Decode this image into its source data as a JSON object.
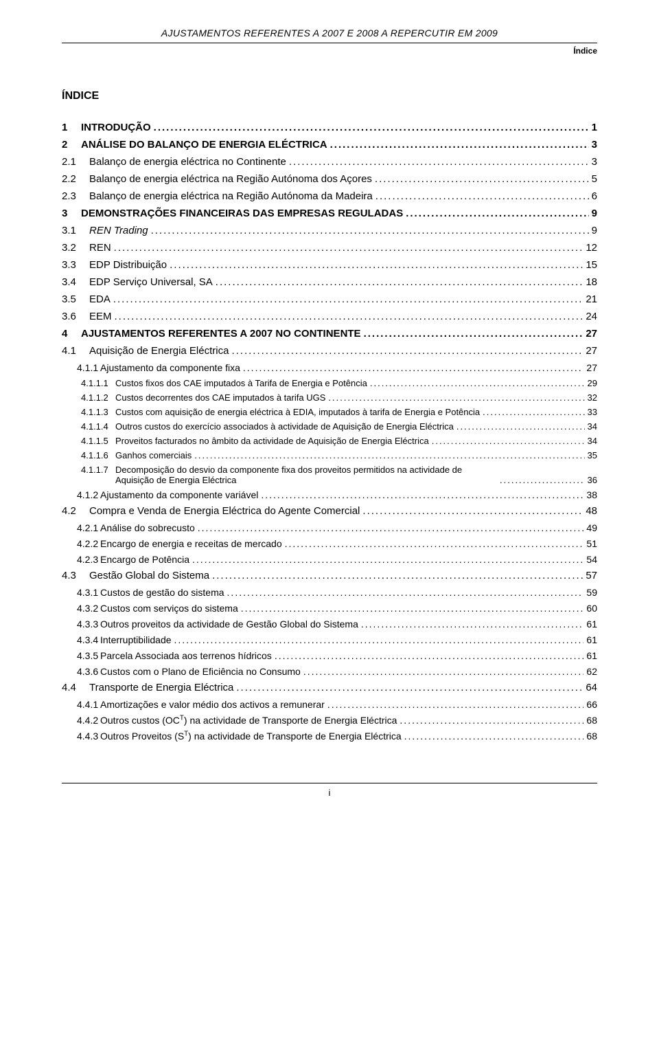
{
  "header": {
    "title": "AJUSTAMENTOS REFERENTES A 2007 E 2008 A REPERCUTIR EM 2009",
    "subtitle": "Índice"
  },
  "index_heading": "ÍNDICE",
  "footer_page": "i",
  "toc": [
    {
      "lvl": 1,
      "num": "1",
      "text": "INTRODUÇÃO",
      "page": "1"
    },
    {
      "lvl": 1,
      "num": "2",
      "text": "ANÁLISE DO BALANÇO DE ENERGIA ELÉCTRICA",
      "page": "3"
    },
    {
      "lvl": 2,
      "num": "2.1",
      "text": "Balanço de energia eléctrica no Continente",
      "page": "3"
    },
    {
      "lvl": 2,
      "num": "2.2",
      "text": "Balanço de energia eléctrica na Região Autónoma dos Açores",
      "page": "5"
    },
    {
      "lvl": 2,
      "num": "2.3",
      "text": "Balanço de energia eléctrica na Região Autónoma da Madeira",
      "page": "6"
    },
    {
      "lvl": 1,
      "num": "3",
      "text": "DEMONSTRAÇÕES FINANCEIRAS DAS EMPRESAS REGULADAS",
      "page": "9"
    },
    {
      "lvl": 2,
      "num": "3.1",
      "text": "REN Trading",
      "page": "9",
      "italic": true
    },
    {
      "lvl": 2,
      "num": "3.2",
      "text": "REN",
      "page": "12"
    },
    {
      "lvl": 2,
      "num": "3.3",
      "text": "EDP Distribuição",
      "page": "15"
    },
    {
      "lvl": 2,
      "num": "3.4",
      "text": "EDP Serviço Universal, SA",
      "page": "18"
    },
    {
      "lvl": 2,
      "num": "3.5",
      "text": "EDA",
      "page": "21"
    },
    {
      "lvl": 2,
      "num": "3.6",
      "text": "EEM",
      "page": "24"
    },
    {
      "lvl": 1,
      "num": "4",
      "text": "AJUSTAMENTOS REFERENTES A 2007 NO CONTINENTE",
      "page": "27"
    },
    {
      "lvl": 2,
      "num": "4.1",
      "text": "Aquisição de Energia Eléctrica",
      "page": "27"
    },
    {
      "lvl": 3,
      "num": "4.1.1",
      "text": "Ajustamento da componente fixa",
      "page": "27"
    },
    {
      "lvl": 4,
      "num": "4.1.1.1",
      "text": "Custos fixos dos CAE imputados à Tarifa de Energia e Potência",
      "page": "29"
    },
    {
      "lvl": 4,
      "num": "4.1.1.2",
      "text": "Custos decorrentes dos CAE imputados à tarifa UGS",
      "page": "32"
    },
    {
      "lvl": 4,
      "num": "4.1.1.3",
      "text": "Custos com aquisição de energia eléctrica à EDIA, imputados à tarifa de Energia e Potência",
      "page": "33",
      "wrap": true
    },
    {
      "lvl": 4,
      "num": "4.1.1.4",
      "text": "Outros custos do exercício associados à actividade de Aquisição de Energia Eléctrica",
      "page": "34"
    },
    {
      "lvl": 4,
      "num": "4.1.1.5",
      "text": "Proveitos facturados no âmbito da actividade de Aquisição de Energia Eléctrica",
      "page": "34"
    },
    {
      "lvl": 4,
      "num": "4.1.1.6",
      "text": "Ganhos comerciais",
      "page": "35"
    },
    {
      "lvl": 4,
      "num": "4.1.1.7",
      "text": "Decomposição do desvio da componente fixa dos proveitos permitidos na actividade de Aquisição de Energia Eléctrica",
      "page": "36",
      "wrap": true
    },
    {
      "lvl": 3,
      "num": "4.1.2",
      "text": "Ajustamento da componente variável",
      "page": "38"
    },
    {
      "lvl": 2,
      "num": "4.2",
      "text": "Compra e Venda de Energia Eléctrica do Agente Comercial",
      "page": "48"
    },
    {
      "lvl": 3,
      "num": "4.2.1",
      "text": "Análise do sobrecusto",
      "page": "49"
    },
    {
      "lvl": 3,
      "num": "4.2.2",
      "text": "Encargo de energia e receitas de mercado",
      "page": "51"
    },
    {
      "lvl": 3,
      "num": "4.2.3",
      "text": "Encargo de Potência",
      "page": "54"
    },
    {
      "lvl": 2,
      "num": "4.3",
      "text": "Gestão Global do Sistema",
      "page": "57"
    },
    {
      "lvl": 3,
      "num": "4.3.1",
      "text": "Custos de gestão do sistema",
      "page": "59"
    },
    {
      "lvl": 3,
      "num": "4.3.2",
      "text": "Custos com serviços do sistema",
      "page": "60"
    },
    {
      "lvl": 3,
      "num": "4.3.3",
      "text": "Outros proveitos da actividade de Gestão Global do Sistema",
      "page": "61"
    },
    {
      "lvl": 3,
      "num": "4.3.4",
      "text": "Interruptibilidade",
      "page": "61"
    },
    {
      "lvl": 3,
      "num": "4.3.5",
      "text": "Parcela Associada aos terrenos hídricos",
      "page": "61"
    },
    {
      "lvl": 3,
      "num": "4.3.6",
      "text": "Custos com o Plano de Eficiência no Consumo",
      "page": "62"
    },
    {
      "lvl": 2,
      "num": "4.4",
      "text": "Transporte de Energia Eléctrica",
      "page": "64"
    },
    {
      "lvl": 3,
      "num": "4.4.1",
      "text": "Amortizações e valor médio dos activos a remunerar",
      "page": "66"
    },
    {
      "lvl": 3,
      "num": "4.4.2",
      "text_html": "Outros custos (OC<sup>T</sup>) na actividade de Transporte de Energia Eléctrica",
      "page": "68"
    },
    {
      "lvl": 3,
      "num": "4.4.3",
      "text_html": "Outros Proveitos (S<sup>T</sup>) na actividade de Transporte de Energia Eléctrica",
      "page": "68"
    }
  ]
}
